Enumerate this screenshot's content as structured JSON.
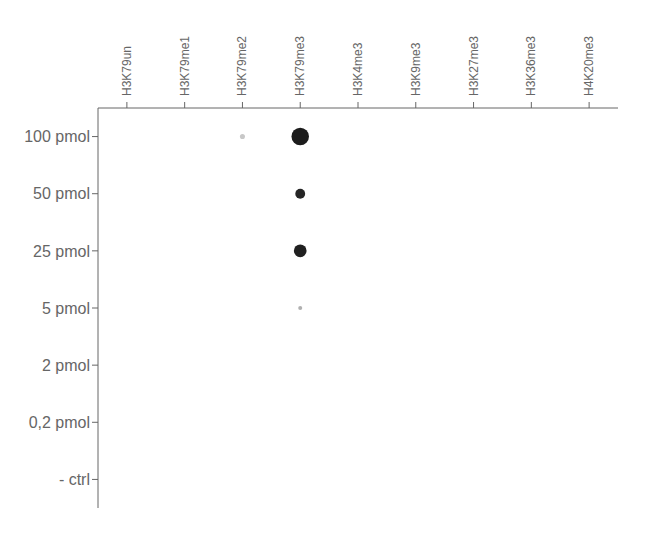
{
  "chart_data": {
    "type": "scatter",
    "categories": [
      "H3K79un",
      "H3K79me1",
      "H3K79me2",
      "H3K79me3",
      "H3K4me3",
      "H3K9me3",
      "H3K27me3",
      "H3K36me3",
      "H4K20me3"
    ],
    "rows": [
      "100 pmol",
      "50 pmol",
      "25 pmol",
      "5 pmol",
      "2 pmol",
      "0,2 pmol",
      "- ctrl"
    ],
    "points": [
      {
        "x": "H3K79me2",
        "y": "100 pmol",
        "size": 8,
        "color": "#c8c8c8"
      },
      {
        "x": "H3K79me3",
        "y": "100 pmol",
        "size": 95,
        "color": "#1c1c1c"
      },
      {
        "x": "H3K79me3",
        "y": "50 pmol",
        "size": 30,
        "color": "#252525"
      },
      {
        "x": "H3K79me3",
        "y": "25 pmol",
        "size": 50,
        "color": "#202020"
      },
      {
        "x": "H3K79me3",
        "y": "5 pmol",
        "size": 5,
        "color": "#b0b0b0"
      }
    ],
    "grid": false
  }
}
